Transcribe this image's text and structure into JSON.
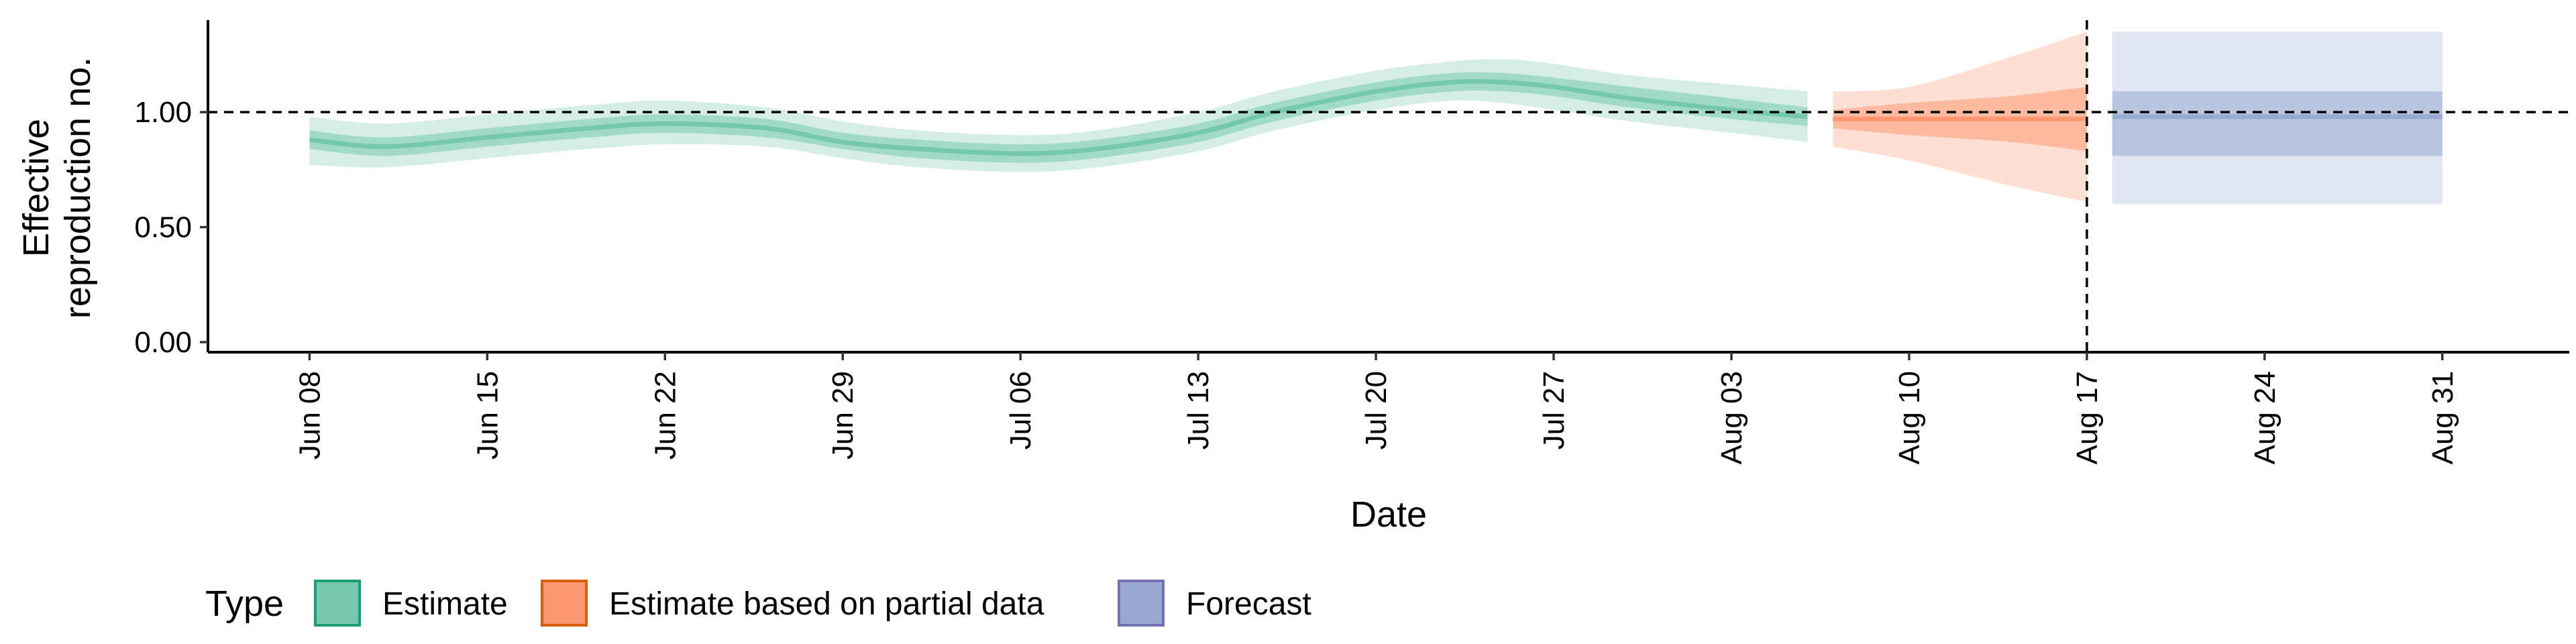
{
  "chart_data": {
    "type": "area",
    "title": "",
    "xlabel": "Date",
    "ylabel": [
      "Effective",
      "reproduction no."
    ],
    "ylim": [
      0,
      1.4
    ],
    "yticks": [
      0,
      0.5,
      1.0
    ],
    "ytick_labels": [
      "0.00",
      "0.50",
      "1.00"
    ],
    "xlim": [
      "2020-06-04",
      "2020-09-05"
    ],
    "xticks": [
      "2020-06-08",
      "2020-06-15",
      "2020-06-22",
      "2020-06-29",
      "2020-07-06",
      "2020-07-13",
      "2020-07-20",
      "2020-07-27",
      "2020-08-03",
      "2020-08-10",
      "2020-08-17",
      "2020-08-24",
      "2020-08-31"
    ],
    "xtick_labels": [
      "Jun 08",
      "Jun 15",
      "Jun 22",
      "Jun 29",
      "Jul 06",
      "Jul 13",
      "Jul 20",
      "Jul 27",
      "Aug 03",
      "Aug 10",
      "Aug 17",
      "Aug 24",
      "Aug 31"
    ],
    "reference_line_y": 1.0,
    "reference_line_x": "2020-08-17",
    "grid": false,
    "legend": {
      "title": "Type",
      "position": "bottom-left",
      "entries": [
        "Estimate",
        "Estimate based on partial data",
        "Forecast"
      ]
    },
    "series": [
      {
        "name": "Estimate",
        "color": "#1b9e77",
        "fill": "#66c2a5",
        "x": [
          "2020-06-08",
          "2020-06-11",
          "2020-06-15",
          "2020-06-19",
          "2020-06-22",
          "2020-06-26",
          "2020-06-29",
          "2020-07-02",
          "2020-07-06",
          "2020-07-09",
          "2020-07-13",
          "2020-07-16",
          "2020-07-20",
          "2020-07-23",
          "2020-07-25",
          "2020-07-27",
          "2020-07-30",
          "2020-08-03",
          "2020-08-06"
        ],
        "median": [
          0.88,
          0.85,
          0.89,
          0.93,
          0.95,
          0.93,
          0.87,
          0.84,
          0.82,
          0.84,
          0.91,
          1.0,
          1.09,
          1.13,
          1.13,
          1.11,
          1.06,
          1.01,
          0.98
        ],
        "lower_90": [
          0.77,
          0.76,
          0.8,
          0.84,
          0.86,
          0.85,
          0.8,
          0.76,
          0.74,
          0.76,
          0.83,
          0.92,
          1.01,
          1.05,
          1.04,
          1.01,
          0.96,
          0.91,
          0.87
        ],
        "upper_90": [
          0.98,
          0.95,
          0.99,
          1.03,
          1.05,
          1.02,
          0.96,
          0.92,
          0.9,
          0.92,
          1.0,
          1.09,
          1.18,
          1.22,
          1.23,
          1.21,
          1.16,
          1.12,
          1.09
        ],
        "lower_50": [
          0.84,
          0.81,
          0.85,
          0.89,
          0.91,
          0.89,
          0.84,
          0.8,
          0.78,
          0.8,
          0.87,
          0.96,
          1.05,
          1.09,
          1.09,
          1.07,
          1.02,
          0.97,
          0.94
        ],
        "upper_50": [
          0.92,
          0.89,
          0.93,
          0.97,
          0.99,
          0.97,
          0.91,
          0.88,
          0.86,
          0.88,
          0.95,
          1.04,
          1.13,
          1.17,
          1.17,
          1.15,
          1.11,
          1.06,
          1.02
        ]
      },
      {
        "name": "Estimate based on partial data",
        "color": "#d95f02",
        "fill": "#fc8d62",
        "x": [
          "2020-08-07",
          "2020-08-10",
          "2020-08-14",
          "2020-08-17"
        ],
        "median": [
          0.97,
          0.97,
          0.97,
          0.97
        ],
        "lower_90": [
          0.85,
          0.79,
          0.68,
          0.61
        ],
        "upper_90": [
          1.09,
          1.11,
          1.24,
          1.35
        ],
        "lower_50": [
          0.93,
          0.9,
          0.87,
          0.83
        ],
        "upper_50": [
          1.01,
          1.04,
          1.07,
          1.11
        ]
      },
      {
        "name": "Forecast",
        "color": "#7570b3",
        "fill": "#8da0cb",
        "x": [
          "2020-08-18",
          "2020-08-31"
        ],
        "median": [
          0.98,
          0.98
        ],
        "lower_90": [
          0.6,
          0.6
        ],
        "upper_90": [
          1.35,
          1.35
        ],
        "lower_50": [
          0.81,
          0.81
        ],
        "upper_50": [
          1.09,
          1.09
        ]
      }
    ]
  }
}
